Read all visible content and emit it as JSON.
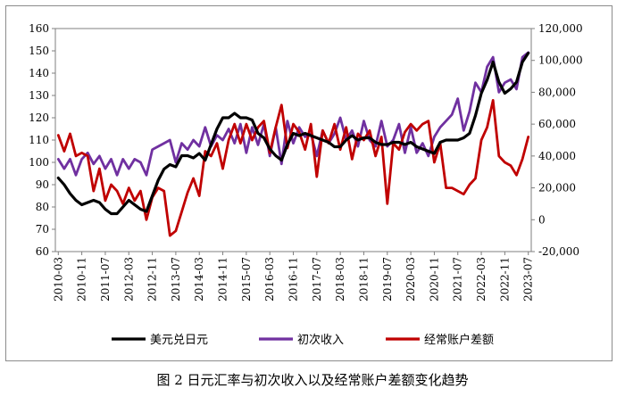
{
  "caption": "图 2  日元汇率与初次收入以及经常账户差额变化趋势",
  "chart_data": {
    "type": "line",
    "title": "",
    "xlabel": "",
    "ylabel": "",
    "ylim": [
      60,
      160
    ],
    "y2lim": [
      -20000,
      120000
    ],
    "left_ticks": [
      "60",
      "70",
      "80",
      "90",
      "100",
      "110",
      "120",
      "130",
      "140",
      "150",
      "160"
    ],
    "right_ticks": [
      "-20,000",
      "0",
      "20,000",
      "40,000",
      "60,000",
      "80,000",
      "100,000",
      "120,000"
    ],
    "x_tick_labels": [
      "2010-03",
      "2010-11",
      "2011-07",
      "2012-03",
      "2012-11",
      "2013-07",
      "2014-03",
      "2014-11",
      "2015-07",
      "2016-03",
      "2016-11",
      "2017-07",
      "2018-03",
      "2018-11",
      "2019-07",
      "2020-03",
      "2020-11",
      "2021-07",
      "2022-03",
      "2022-11",
      "2023-07"
    ],
    "x_start": "2010-03",
    "x_step_months": 2,
    "legend_position": "bottom",
    "series": [
      {
        "name": "美元兑日元",
        "axis": "left",
        "color": "#000000",
        "values": [
          93,
          90,
          86,
          83,
          81,
          82,
          83,
          82,
          79,
          77,
          77,
          80,
          83,
          81,
          79,
          78,
          85,
          92,
          97,
          99,
          98,
          103,
          103,
          102,
          104,
          101,
          108,
          115,
          120,
          120,
          122,
          120,
          120,
          119,
          113,
          111,
          106,
          103,
          101,
          108,
          113,
          112,
          113,
          112,
          111,
          110,
          109,
          107,
          107,
          110,
          112,
          110,
          111,
          111,
          109,
          108,
          108,
          109,
          109,
          108,
          109,
          107,
          106,
          105,
          104,
          109,
          110,
          110,
          110,
          111,
          113,
          121,
          131,
          137,
          145,
          136,
          131,
          133,
          136,
          145,
          149
        ]
      },
      {
        "name": "初次收入",
        "axis": "right",
        "color": "#7030a0",
        "values": [
          38000,
          32000,
          38000,
          28000,
          38000,
          42000,
          35000,
          40000,
          32000,
          38000,
          28000,
          38000,
          32000,
          38000,
          36000,
          28000,
          44000,
          46000,
          48000,
          50000,
          36000,
          48000,
          44000,
          50000,
          46000,
          58000,
          46000,
          53000,
          50000,
          57000,
          48000,
          60000,
          42000,
          58000,
          47000,
          60000,
          40000,
          58000,
          35000,
          62000,
          48000,
          58000,
          52000,
          54000,
          40000,
          56000,
          48000,
          54000,
          64000,
          50000,
          56000,
          46000,
          62000,
          50000,
          46000,
          62000,
          46000,
          50000,
          60000,
          42000,
          58000,
          42000,
          48000,
          40000,
          52000,
          58000,
          62000,
          66000,
          76000,
          56000,
          68000,
          86000,
          80000,
          96000,
          102000,
          80000,
          86000,
          88000,
          82000,
          102000,
          105000
        ]
      },
      {
        "name": "经常账户差额",
        "axis": "right",
        "color": "#c00000",
        "values": [
          53000,
          43000,
          54000,
          40000,
          42000,
          40000,
          18000,
          32000,
          12000,
          22000,
          18000,
          10000,
          20000,
          12000,
          18000,
          0,
          14000,
          20000,
          18000,
          -10000,
          -7000,
          5000,
          17000,
          26000,
          15000,
          43000,
          40000,
          48000,
          32000,
          50000,
          60000,
          48000,
          60000,
          50000,
          58000,
          62000,
          42000,
          58000,
          72000,
          45000,
          60000,
          55000,
          44000,
          60000,
          27000,
          56000,
          48000,
          60000,
          44000,
          58000,
          38000,
          54000,
          50000,
          56000,
          40000,
          52000,
          10000,
          48000,
          44000,
          55000,
          60000,
          56000,
          60000,
          62000,
          36000,
          48000,
          20000,
          20000,
          18000,
          16000,
          22000,
          26000,
          50000,
          58000,
          75000,
          40000,
          36000,
          34000,
          28000,
          38000,
          52000
        ]
      }
    ]
  }
}
